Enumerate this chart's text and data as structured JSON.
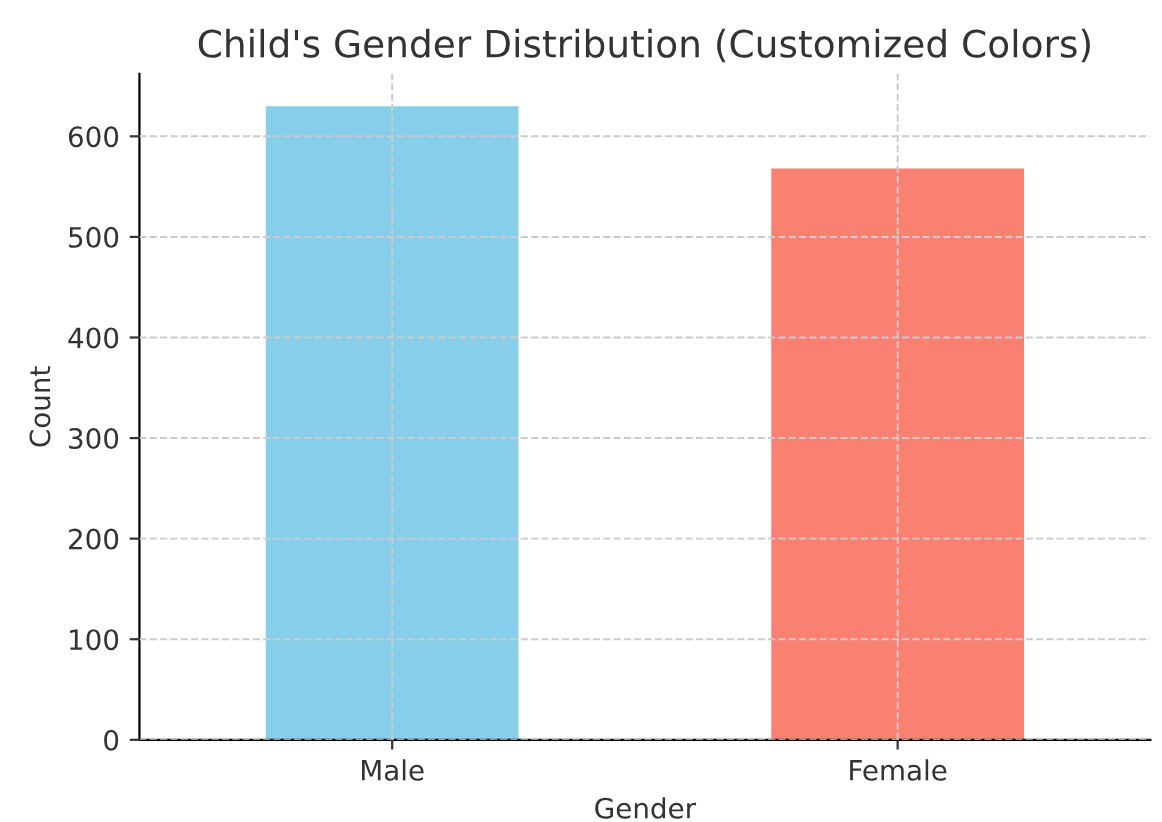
{
  "chart_data": {
    "type": "bar",
    "title": "Child's Gender Distribution (Customized Colors)",
    "xlabel": "Gender",
    "ylabel": "Count",
    "categories": [
      "Male",
      "Female"
    ],
    "values": [
      630,
      568
    ],
    "colors": [
      "#87ceeb",
      "#fa8072"
    ],
    "ylim": [
      0,
      662
    ],
    "yticks": [
      0,
      100,
      200,
      300,
      400,
      500,
      600
    ],
    "grid": true
  }
}
